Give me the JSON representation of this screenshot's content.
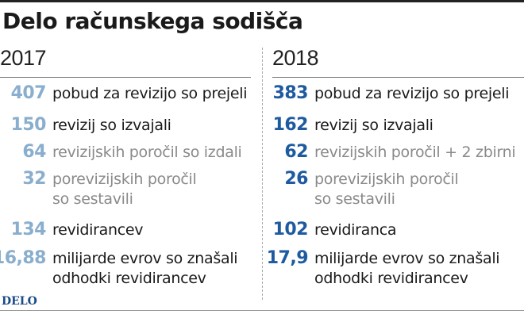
{
  "title": "Delo računskega sodišča",
  "colors": {
    "light_number": "#8aaecd",
    "dark_number": "#1e5aa0",
    "label_dark": "#1a1a1a",
    "label_gray": "#8a8a8a"
  },
  "left": {
    "year": "2017",
    "rows": [
      {
        "value": "407",
        "label_lines": [
          "pobud za revizijo so prejeli"
        ],
        "tone": "dark"
      },
      {
        "value": "150",
        "label_lines": [
          "revizij so izvajali"
        ],
        "tone": "dark"
      },
      {
        "value": "64",
        "label_lines": [
          "revizijskih poročil so izdali"
        ],
        "tone": "gray"
      },
      {
        "value": "32",
        "label_lines": [
          "porevizijskih poročil",
          "so sestavili"
        ],
        "tone": "gray"
      },
      {
        "value": "134",
        "label_lines": [
          "revidirancev"
        ],
        "tone": "dark"
      },
      {
        "value": "16,88",
        "label_lines": [
          "milijarde evrov so znašali",
          "odhodki revidirancev"
        ],
        "tone": "dark"
      }
    ]
  },
  "right": {
    "year": "2018",
    "rows": [
      {
        "value": "383",
        "label_lines": [
          "pobud za revizijo so prejeli"
        ],
        "tone": "dark"
      },
      {
        "value": "162",
        "label_lines": [
          "revizij so izvajali"
        ],
        "tone": "dark"
      },
      {
        "value": "62",
        "label_lines": [
          "revizijskih poročil + 2 zbirni"
        ],
        "tone": "gray"
      },
      {
        "value": "26",
        "label_lines": [
          "porevizijskih poročil",
          "so sestavili"
        ],
        "tone": "gray"
      },
      {
        "value": "102",
        "label_lines": [
          "revidiranca"
        ],
        "tone": "dark"
      },
      {
        "value": "17,9",
        "label_lines": [
          "milijarde evrov so znašali",
          "odhodki revidirancev"
        ],
        "tone": "dark"
      }
    ]
  },
  "footer": "DELO"
}
